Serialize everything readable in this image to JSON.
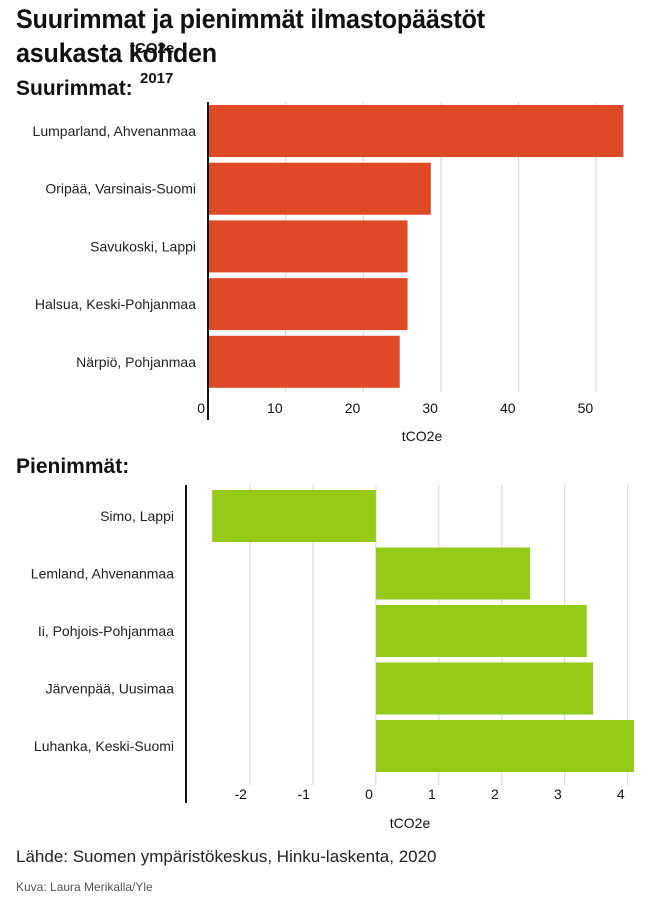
{
  "title": "Suurimmat ja pienimmät ilmastopäästöt asukasta kohden",
  "unit_tag": "tCO2e",
  "year_tag": "2017",
  "source": "Lähde: Suomen ympäristökeskus, Hinku-laskenta, 2020",
  "credit": "Kuva: Laura Merikalla/Yle",
  "colors": {
    "top_bars": "#df4a26",
    "bottom_bars": "#94c917",
    "grid": "#d6d6d6",
    "axis": "#111111"
  },
  "chart_data": [
    {
      "type": "bar",
      "orientation": "horizontal",
      "heading": "Suurimmat:",
      "categories": [
        "Lumparland, Ahvenanmaa",
        "Oripää, Varsinais-Suomi",
        "Savukoski, Lappi",
        "Halsua, Keski-Pohjanmaa",
        "Närpiö, Pohjanmaa"
      ],
      "values": [
        53.5,
        28.7,
        25.7,
        25.7,
        24.7
      ],
      "xlabel": "tCO2e",
      "xlim": [
        0,
        55
      ],
      "ticks": [
        0,
        10,
        20,
        30,
        40,
        50
      ],
      "tick_labels": [
        "0",
        "10",
        "20",
        "30",
        "40",
        "50"
      ],
      "grid": true
    },
    {
      "type": "bar",
      "orientation": "horizontal",
      "heading": "Pienimmät:",
      "categories": [
        "Simo, Lappi",
        "Lemland, Ahvenanmaa",
        "Ii, Pohjois-Pohjanmaa",
        "Järvenpää, Uusimaa",
        "Luhanka, Keski-Suomi"
      ],
      "values": [
        -2.6,
        2.45,
        3.35,
        3.45,
        4.1
      ],
      "xlabel": "tCO2e",
      "xlim": [
        -3,
        4.1
      ],
      "ticks": [
        -2,
        -1,
        0,
        1,
        2,
        3,
        4
      ],
      "tick_labels": [
        "-2",
        "-1",
        "0",
        "1",
        "2",
        "3",
        "4"
      ],
      "grid": true
    }
  ]
}
